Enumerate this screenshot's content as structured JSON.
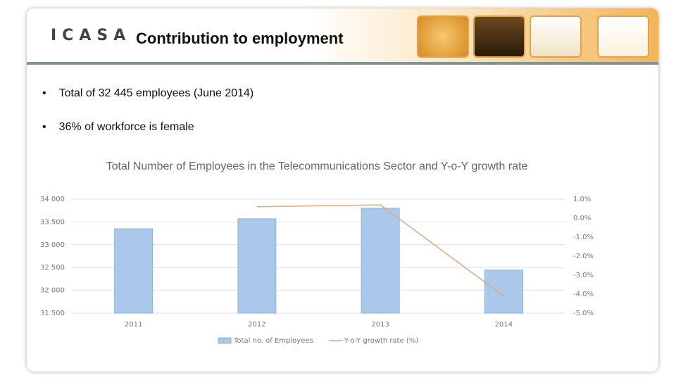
{
  "header": {
    "logo": "ICASA",
    "title": "Contribution to employment"
  },
  "bullets": [
    "Total of 32 445 employees (June 2014)",
    "36% of workforce is female"
  ],
  "chart_data": {
    "type": "bar",
    "title": "Total Number of Employees in the Telecommunications  Sector and Y-o-Y growth rate",
    "categories": [
      "2011",
      "2012",
      "2013",
      "2014"
    ],
    "series": [
      {
        "name": "Total no. of Employees",
        "color": "#a9c8ea",
        "values": [
          33350,
          33570,
          33800,
          32445
        ]
      },
      {
        "name": "Y-o-Y growth rate (%)",
        "type": "line",
        "axis": "y2",
        "color": "#e3a77a",
        "values": [
          null,
          0.6,
          0.7,
          -4.1
        ]
      }
    ],
    "ylim": [
      31500,
      34000
    ],
    "yticks": [
      {
        "value": 31500,
        "label": "31 500"
      },
      {
        "value": 32000,
        "label": "32 000"
      },
      {
        "value": 32500,
        "label": "32 500"
      },
      {
        "value": 33000,
        "label": "33 000"
      },
      {
        "value": 33500,
        "label": "33 500"
      },
      {
        "value": 34000,
        "label": "34 000"
      }
    ],
    "y2lim": [
      -5,
      1
    ],
    "y2ticks": [
      {
        "value": 1,
        "label": "1.0%"
      },
      {
        "value": 0,
        "label": "0.0%"
      },
      {
        "value": -1,
        "label": "-1.0%"
      },
      {
        "value": -2,
        "label": "-2.0%"
      },
      {
        "value": -3,
        "label": "-3.0%"
      },
      {
        "value": -4,
        "label": "-4.0%"
      },
      {
        "value": -5,
        "label": "-5.0%"
      }
    ],
    "grid": true,
    "legend": "bottom"
  }
}
